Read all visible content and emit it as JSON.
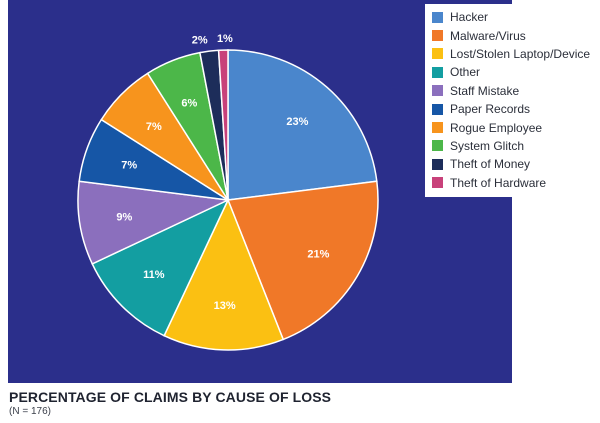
{
  "chart_data": {
    "type": "pie",
    "title": "PERCENTAGE OF CLAIMS BY CAUSE OF LOSS",
    "subtitle": "(N = 176)",
    "legend_position": "top-right",
    "slices": [
      {
        "label": "Hacker",
        "value": 23,
        "display": "23%",
        "color": "#4a86cc"
      },
      {
        "label": "Malware/Virus",
        "value": 21,
        "display": "21%",
        "color": "#f07828"
      },
      {
        "label": "Lost/Stolen Laptop/Device",
        "value": 13,
        "display": "13%",
        "color": "#fbc012"
      },
      {
        "label": "Other",
        "value": 11,
        "display": "11%",
        "color": "#139ea1"
      },
      {
        "label": "Staff Mistake",
        "value": 9,
        "display": "9%",
        "color": "#8b6fbd"
      },
      {
        "label": "Paper Records",
        "value": 7,
        "display": "7%",
        "color": "#1656a6"
      },
      {
        "label": "Rogue Employee",
        "value": 7,
        "display": "7%",
        "color": "#f7941d"
      },
      {
        "label": "System Glitch",
        "value": 6,
        "display": "6%",
        "color": "#4cb749"
      },
      {
        "label": "Theft of Money",
        "value": 2,
        "display": "2%",
        "color": "#1d2d5a"
      },
      {
        "label": "Theft of Hardware",
        "value": 1,
        "display": "1%",
        "color": "#c8417a"
      }
    ]
  }
}
